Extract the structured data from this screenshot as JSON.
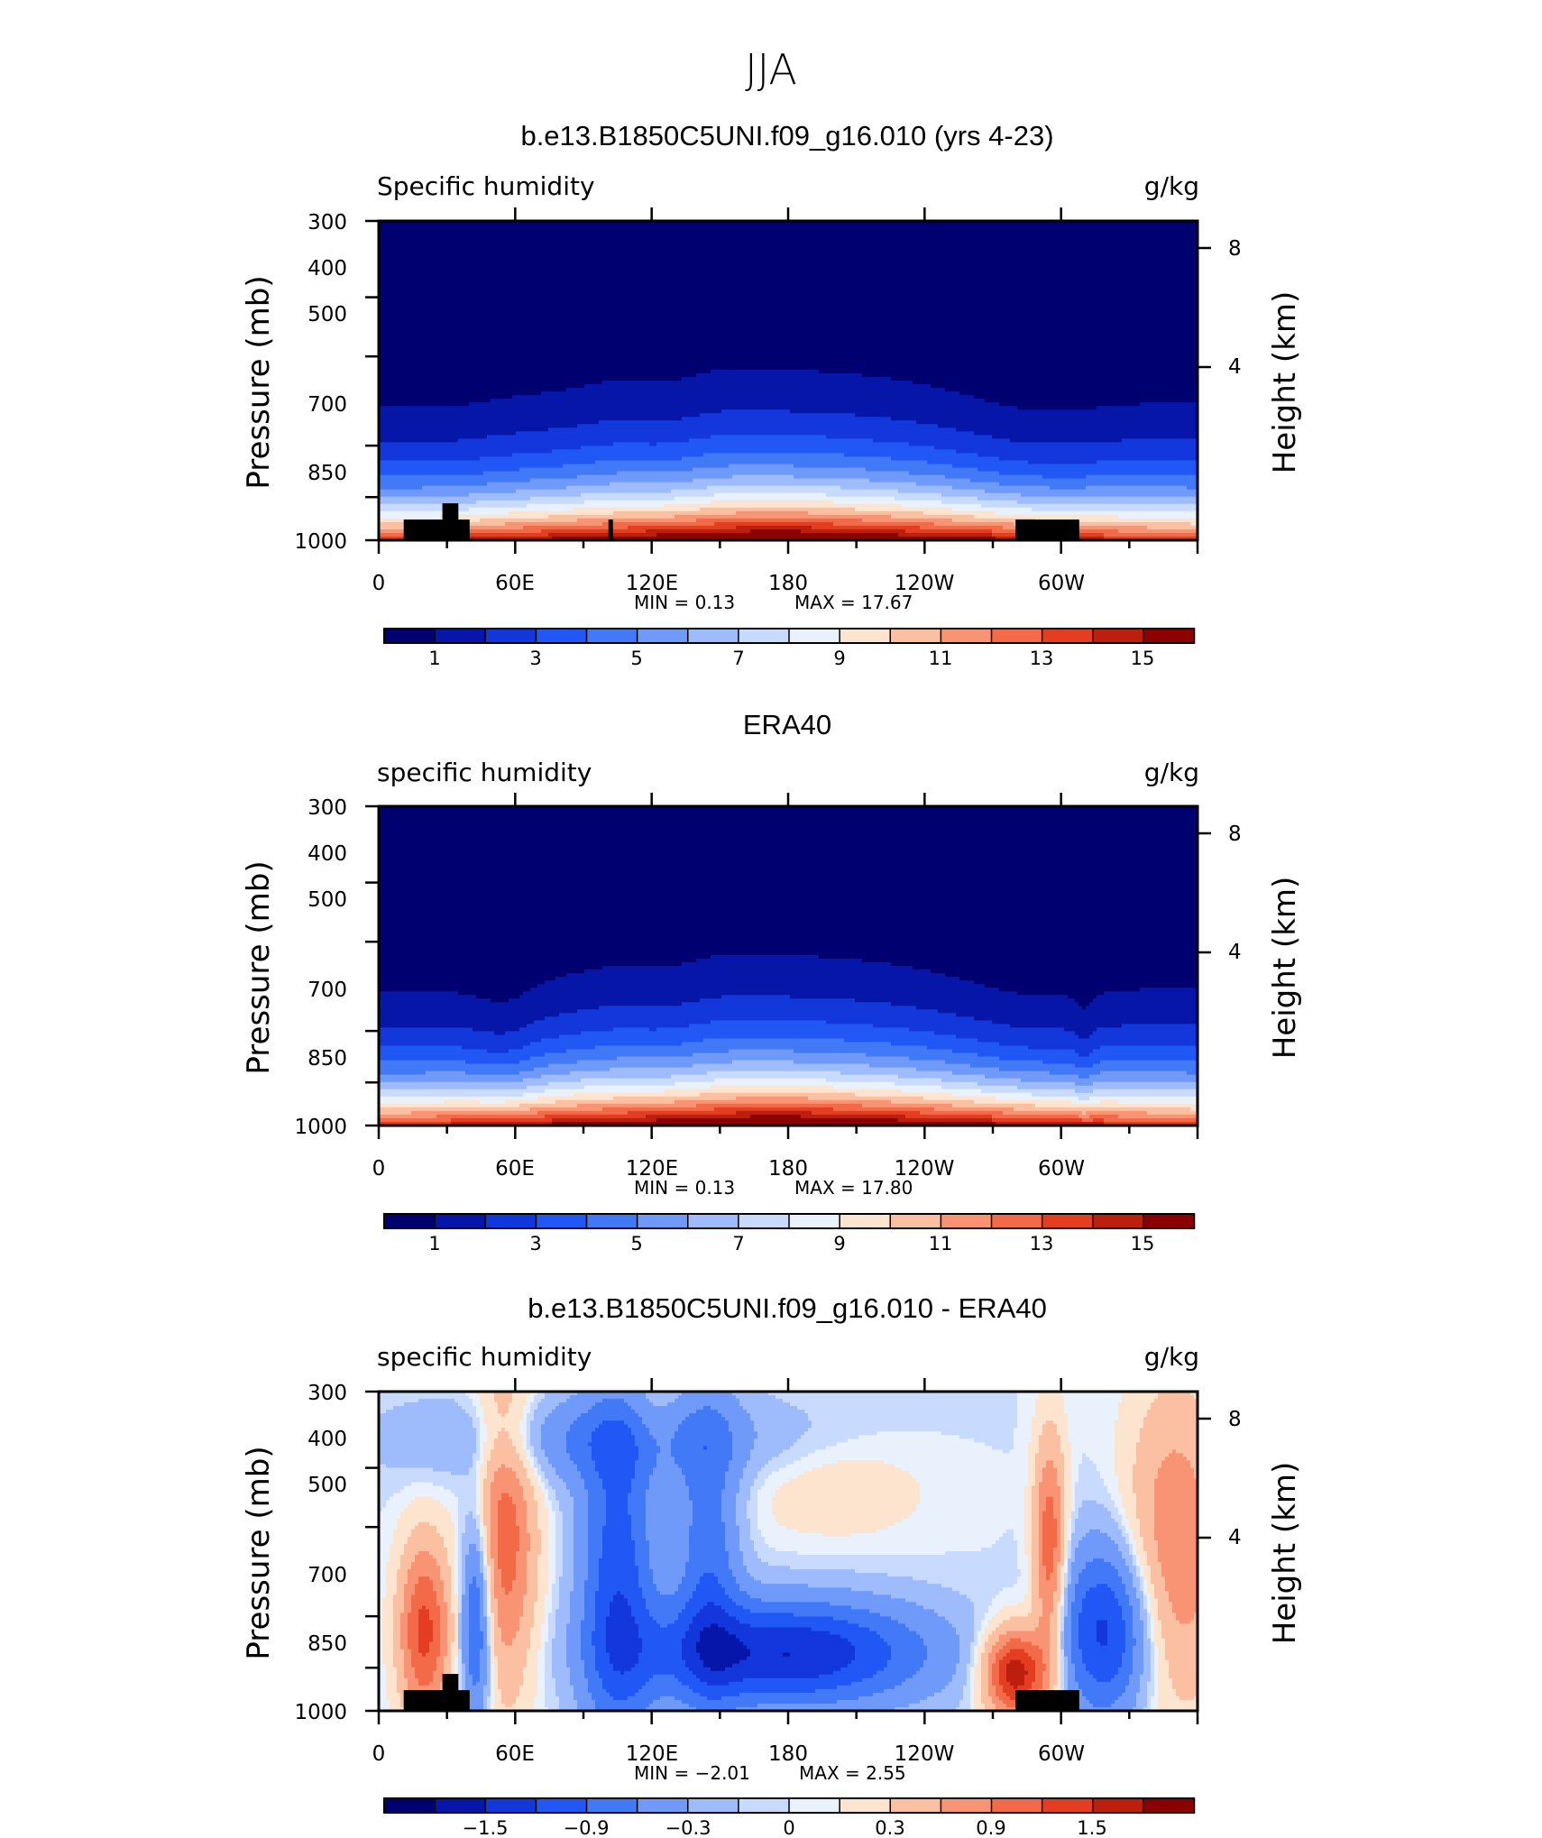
{
  "title": "JJA",
  "chart_data": [
    {
      "type": "heatmap",
      "title": "b.e13.B1850C5UNI.f09_g16.010 (yrs 4-23)",
      "left_label": "Specific humidity",
      "right_label": "g/kg",
      "ylabel": "Pressure (mb)",
      "ylabel_right": "Height (km)",
      "x_ticks": [
        "0",
        "60E",
        "120E",
        "180",
        "120W",
        "60W"
      ],
      "y_ticks": [
        "300",
        "400",
        "500",
        "700",
        "850",
        "1000"
      ],
      "y2_ticks": [
        "8",
        "4"
      ],
      "ylim": [
        1000,
        300
      ],
      "xlim": [
        0,
        360
      ],
      "min_text": "MIN =     0.13",
      "max_text": "MAX =    17.67",
      "min": 0.13,
      "max": 17.67,
      "colorbar_labels": [
        "1",
        "3",
        "5",
        "7",
        "9",
        "11",
        "13",
        "15"
      ],
      "colorbar_levels": [
        1,
        2,
        3,
        4,
        5,
        6,
        7,
        8,
        9,
        10,
        11,
        12,
        13,
        14,
        15
      ],
      "colorbar_colors": [
        "#000070",
        "#0616a8",
        "#1237db",
        "#2158f5",
        "#4279f7",
        "#6f9af9",
        "#9ebcfb",
        "#c8dafd",
        "#e9f1fd",
        "#fde4cf",
        "#fbc0a1",
        "#f89473",
        "#f26a47",
        "#e33e22",
        "#bd1f0e",
        "#8b0000"
      ]
    },
    {
      "type": "heatmap",
      "title": "ERA40",
      "left_label": "specific humidity",
      "right_label": "g/kg",
      "ylabel": "Pressure (mb)",
      "ylabel_right": "Height (km)",
      "x_ticks": [
        "0",
        "60E",
        "120E",
        "180",
        "120W",
        "60W"
      ],
      "y_ticks": [
        "300",
        "400",
        "500",
        "700",
        "850",
        "1000"
      ],
      "y2_ticks": [
        "8",
        "4"
      ],
      "ylim": [
        1000,
        300
      ],
      "xlim": [
        0,
        360
      ],
      "min_text": "MIN =     0.13",
      "max_text": "MAX =    17.80",
      "min": 0.13,
      "max": 17.8,
      "colorbar_labels": [
        "1",
        "3",
        "5",
        "7",
        "9",
        "11",
        "13",
        "15"
      ],
      "colorbar_levels": [
        1,
        2,
        3,
        4,
        5,
        6,
        7,
        8,
        9,
        10,
        11,
        12,
        13,
        14,
        15
      ],
      "colorbar_colors": [
        "#000070",
        "#0616a8",
        "#1237db",
        "#2158f5",
        "#4279f7",
        "#6f9af9",
        "#9ebcfb",
        "#c8dafd",
        "#e9f1fd",
        "#fde4cf",
        "#fbc0a1",
        "#f89473",
        "#f26a47",
        "#e33e22",
        "#bd1f0e",
        "#8b0000"
      ]
    },
    {
      "type": "heatmap",
      "title": "b.e13.B1850C5UNI.f09_g16.010 - ERA40",
      "left_label": "specific humidity",
      "right_label": "g/kg",
      "ylabel": "Pressure (mb)",
      "ylabel_right": "Height (km)",
      "x_ticks": [
        "0",
        "60E",
        "120E",
        "180",
        "120W",
        "60W"
      ],
      "y_ticks": [
        "300",
        "400",
        "500",
        "700",
        "850",
        "1000"
      ],
      "y2_ticks": [
        "8",
        "4"
      ],
      "ylim": [
        1000,
        300
      ],
      "xlim": [
        0,
        360
      ],
      "min_text": "MIN =    −2.01",
      "max_text": "MAX =     2.55",
      "min": -2.01,
      "max": 2.55,
      "colorbar_labels": [
        "−1.5",
        "−0.9",
        "−0.3",
        "0",
        "0.3",
        "0.9",
        "1.5"
      ],
      "colorbar_levels": [
        -1.8,
        -1.5,
        -1.2,
        -0.9,
        -0.6,
        -0.3,
        -0.1,
        0,
        0.1,
        0.3,
        0.6,
        0.9,
        1.2,
        1.5,
        1.8
      ],
      "colorbar_colors": [
        "#000070",
        "#0616a8",
        "#1237db",
        "#2158f5",
        "#4279f7",
        "#6f9af9",
        "#9ebcfb",
        "#c8dafd",
        "#e9f1fd",
        "#fde4cf",
        "#fbc0a1",
        "#f89473",
        "#f26a47",
        "#e33e22",
        "#bd1f0e",
        "#8b0000"
      ]
    }
  ]
}
